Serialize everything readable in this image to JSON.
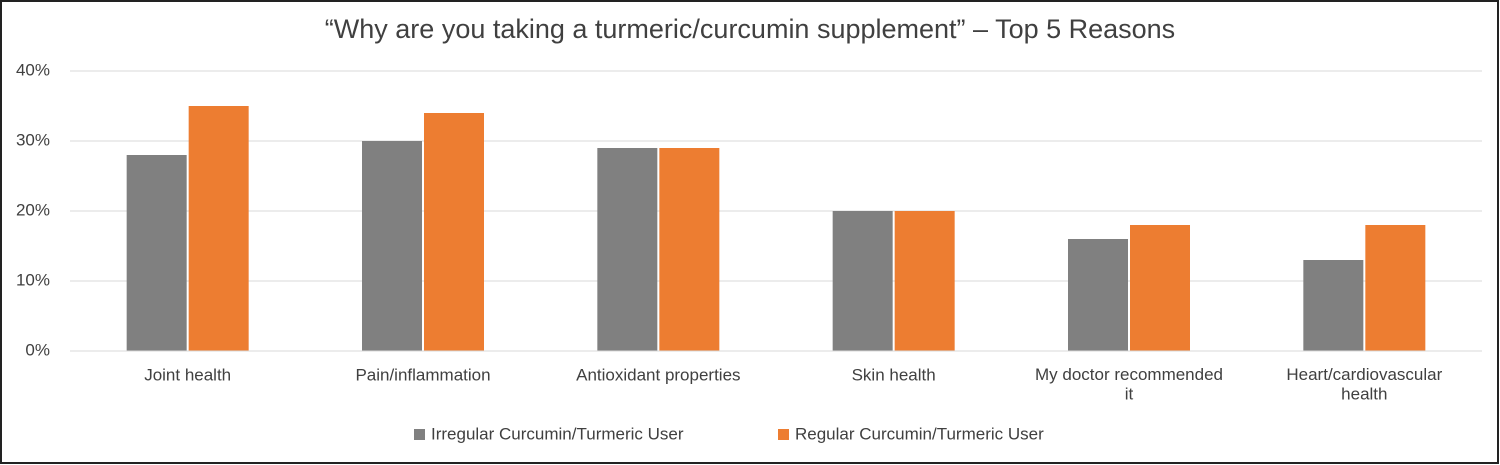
{
  "chart_data": {
    "type": "bar",
    "title": "“Why are you taking a turmeric/curcumin supplement” – Top 5 Reasons",
    "categories": [
      "Joint health",
      "Pain/inflammation",
      "Antioxidant properties",
      "Skin health",
      "My doctor recommended it",
      "Heart/cardiovascular health"
    ],
    "series": [
      {
        "name": "Irregular Curcumin/Turmeric User",
        "color": "#808080",
        "values": [
          28,
          30,
          29,
          20,
          16,
          13
        ]
      },
      {
        "name": "Regular Curcumin/Turmeric User",
        "color": "#ed7d31",
        "values": [
          35,
          34,
          29,
          20,
          18,
          18
        ]
      }
    ],
    "ylim": [
      0,
      40
    ],
    "yticks": [
      {
        "value": 0,
        "label": "0%"
      },
      {
        "value": 10,
        "label": "10%"
      },
      {
        "value": 20,
        "label": "20%"
      },
      {
        "value": 30,
        "label": "30%"
      },
      {
        "value": 40,
        "label": "40%"
      }
    ],
    "grid": true,
    "legend": "bottom"
  }
}
